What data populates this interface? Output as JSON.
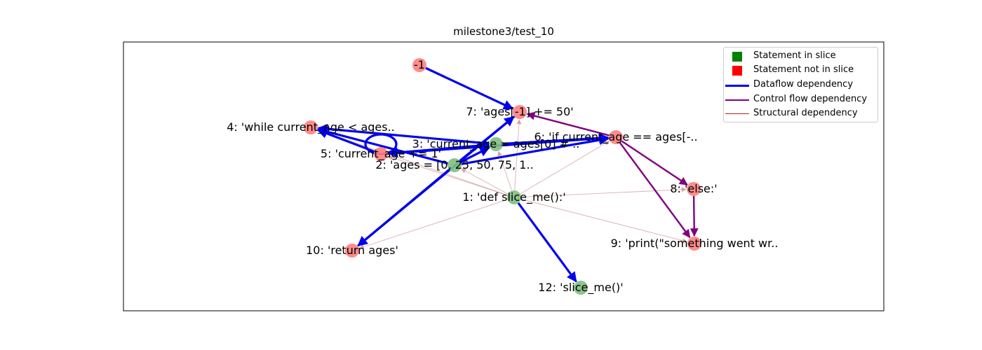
{
  "title": "milestone3/test_10",
  "legend": {
    "in_slice": "Statement in slice",
    "not_in_slice": "Statement not in slice",
    "dataflow": "Dataflow dependency",
    "controlflow": "Control flow dependency",
    "structural": "Structural dependency"
  },
  "colors": {
    "in_slice_node": "#7fbf7f",
    "not_in_slice_node": "#ff7f7f",
    "in_slice_legend": "#008000",
    "not_in_slice_legend": "#ff0000",
    "dataflow": "#0000ee",
    "controlflow": "#800080",
    "structural": "#c58a8a"
  },
  "nodes": [
    {
      "id": "n_neg1",
      "label": "-1",
      "in_slice": false
    },
    {
      "id": "n7",
      "label": "7: 'ages[-1] += 50'",
      "in_slice": false
    },
    {
      "id": "n4",
      "label": "4: 'while current_age < ages..",
      "in_slice": false
    },
    {
      "id": "n6",
      "label": "6: 'if current_age == ages[-..",
      "in_slice": false
    },
    {
      "id": "n3",
      "label": "3: 'current_age = ages[0] # ..",
      "in_slice": true
    },
    {
      "id": "n5",
      "label": "5: 'current_age += 1'",
      "in_slice": false
    },
    {
      "id": "n2",
      "label": "2: 'ages = [0, 25, 50, 75, 1..",
      "in_slice": true
    },
    {
      "id": "n8",
      "label": "8: 'else:'",
      "in_slice": false
    },
    {
      "id": "n1",
      "label": "1: 'def slice_me():'",
      "in_slice": true
    },
    {
      "id": "n9",
      "label": "9: 'print(\"something went wr..",
      "in_slice": false
    },
    {
      "id": "n10",
      "label": "10: 'return ages'",
      "in_slice": false
    },
    {
      "id": "n12",
      "label": "12: 'slice_me()'",
      "in_slice": true
    }
  ],
  "edges": [
    {
      "from": "n1",
      "to": "n2",
      "kind": "structural"
    },
    {
      "from": "n1",
      "to": "n3",
      "kind": "structural"
    },
    {
      "from": "n1",
      "to": "n4",
      "kind": "structural"
    },
    {
      "from": "n1",
      "to": "n5",
      "kind": "structural"
    },
    {
      "from": "n1",
      "to": "n6",
      "kind": "structural"
    },
    {
      "from": "n1",
      "to": "n7",
      "kind": "structural"
    },
    {
      "from": "n1",
      "to": "n8",
      "kind": "structural"
    },
    {
      "from": "n1",
      "to": "n9",
      "kind": "structural"
    },
    {
      "from": "n1",
      "to": "n10",
      "kind": "structural"
    },
    {
      "from": "n_neg1",
      "to": "n7",
      "kind": "dataflow"
    },
    {
      "from": "n2",
      "to": "n3",
      "kind": "dataflow"
    },
    {
      "from": "n2",
      "to": "n4",
      "kind": "dataflow"
    },
    {
      "from": "n2",
      "to": "n6",
      "kind": "dataflow"
    },
    {
      "from": "n2",
      "to": "n7",
      "kind": "dataflow"
    },
    {
      "from": "n2",
      "to": "n10",
      "kind": "dataflow"
    },
    {
      "from": "n3",
      "to": "n4",
      "kind": "dataflow"
    },
    {
      "from": "n3",
      "to": "n5",
      "kind": "dataflow"
    },
    {
      "from": "n3",
      "to": "n6",
      "kind": "dataflow"
    },
    {
      "from": "n5",
      "to": "n4",
      "kind": "dataflow"
    },
    {
      "from": "n5",
      "to": "n6",
      "kind": "dataflow"
    },
    {
      "from": "n5",
      "to": "n5",
      "kind": "dataflow"
    },
    {
      "from": "n7",
      "to": "n10",
      "kind": "dataflow"
    },
    {
      "from": "n1",
      "to": "n12",
      "kind": "dataflow"
    },
    {
      "from": "n6",
      "to": "n7",
      "kind": "controlflow"
    },
    {
      "from": "n6",
      "to": "n8",
      "kind": "controlflow"
    },
    {
      "from": "n6",
      "to": "n9",
      "kind": "controlflow"
    },
    {
      "from": "n8",
      "to": "n9",
      "kind": "controlflow"
    }
  ]
}
